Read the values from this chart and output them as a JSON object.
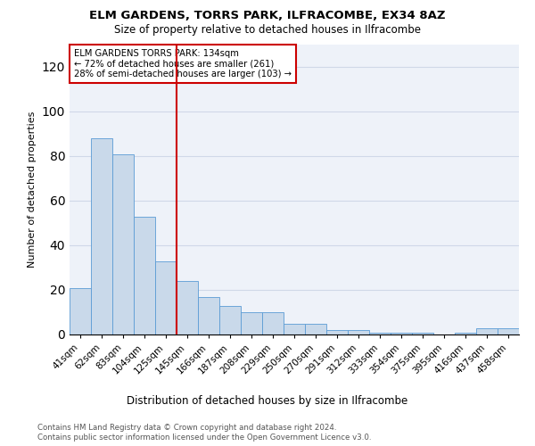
{
  "title1": "ELM GARDENS, TORRS PARK, ILFRACOMBE, EX34 8AZ",
  "title2": "Size of property relative to detached houses in Ilfracombe",
  "xlabel": "Distribution of detached houses by size in Ilfracombe",
  "ylabel": "Number of detached properties",
  "categories": [
    "41sqm",
    "62sqm",
    "83sqm",
    "104sqm",
    "125sqm",
    "145sqm",
    "166sqm",
    "187sqm",
    "208sqm",
    "229sqm",
    "250sqm",
    "270sqm",
    "291sqm",
    "312sqm",
    "333sqm",
    "354sqm",
    "375sqm",
    "395sqm",
    "416sqm",
    "437sqm",
    "458sqm"
  ],
  "values": [
    21,
    88,
    81,
    53,
    33,
    24,
    17,
    13,
    10,
    10,
    5,
    5,
    2,
    2,
    1,
    1,
    1,
    0,
    1,
    3,
    3
  ],
  "bar_color": "#c9d9ea",
  "bar_edge_color": "#5b9bd5",
  "vline_color": "#cc0000",
  "annotation_text": "ELM GARDENS TORRS PARK: 134sqm\n← 72% of detached houses are smaller (261)\n28% of semi-detached houses are larger (103) →",
  "annotation_box_color": "#ffffff",
  "annotation_box_edge": "#cc0000",
  "ylim": [
    0,
    130
  ],
  "yticks": [
    0,
    20,
    40,
    60,
    80,
    100,
    120
  ],
  "footer1": "Contains HM Land Registry data © Crown copyright and database right 2024.",
  "footer2": "Contains public sector information licensed under the Open Government Licence v3.0.",
  "grid_color": "#d0d8e8",
  "background_color": "#eef2f9"
}
